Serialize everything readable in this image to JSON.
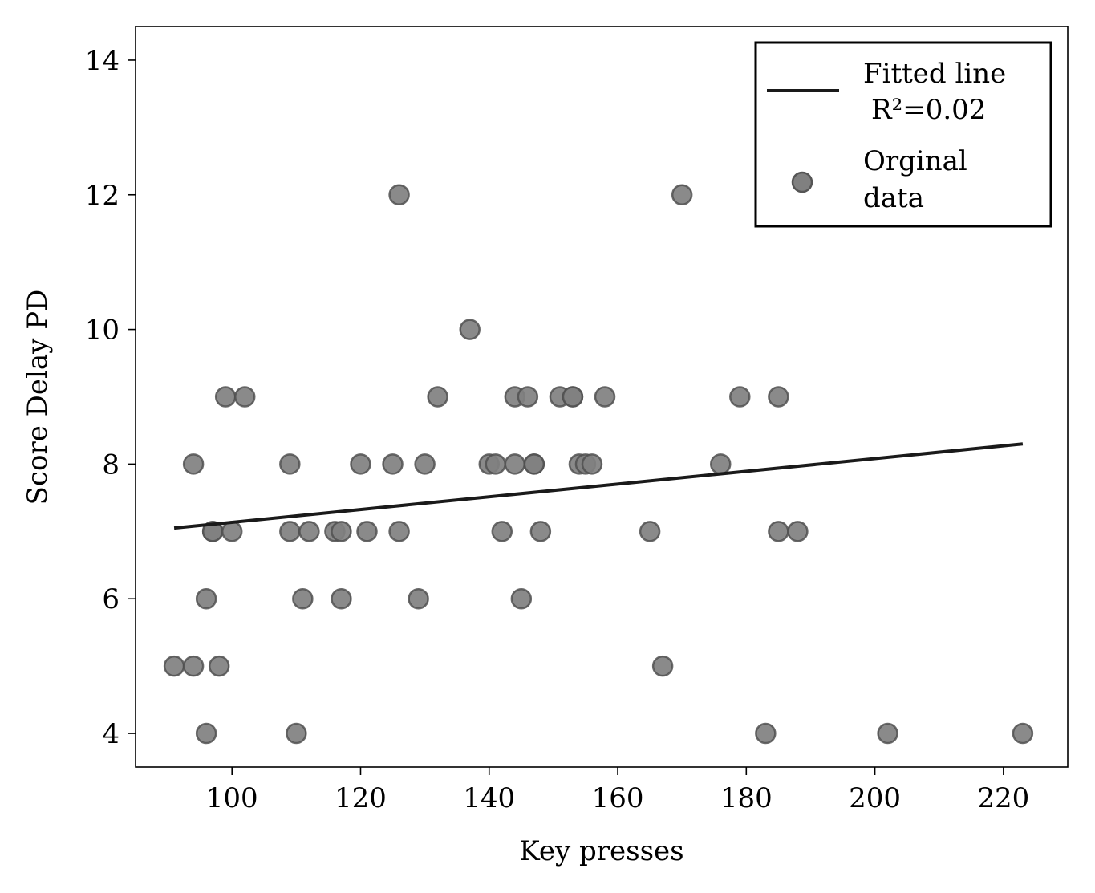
{
  "chart_data": {
    "type": "scatter",
    "xlabel": "Key presses",
    "ylabel": "Score Delay PD",
    "xlim": [
      85,
      230
    ],
    "ylim": [
      3.5,
      14.5
    ],
    "xticks": [
      100,
      120,
      140,
      160,
      180,
      200,
      220
    ],
    "yticks": [
      4,
      6,
      8,
      10,
      12,
      14
    ],
    "grid": false,
    "legend_position": "top-right",
    "legend": {
      "line_label_1": "Fitted line",
      "line_label_2": "R²=0.02",
      "scatter_label_1": "Orginal",
      "scatter_label_2": "data"
    },
    "series": [
      {
        "kind": "line",
        "color": "#1a1a1a",
        "x": [
          91,
          223
        ],
        "y": [
          7.05,
          8.3
        ]
      },
      {
        "kind": "scatter",
        "color": "#808080",
        "points": [
          [
            91,
            5
          ],
          [
            94,
            5
          ],
          [
            98,
            5
          ],
          [
            94,
            8
          ],
          [
            96,
            6
          ],
          [
            96,
            4
          ],
          [
            97,
            7
          ],
          [
            97,
            7
          ],
          [
            100,
            7
          ],
          [
            99,
            9
          ],
          [
            102,
            9
          ],
          [
            109,
            8
          ],
          [
            109,
            7
          ],
          [
            112,
            7
          ],
          [
            111,
            6
          ],
          [
            110,
            4
          ],
          [
            116,
            7
          ],
          [
            117,
            7
          ],
          [
            117,
            6
          ],
          [
            120,
            8
          ],
          [
            121,
            7
          ],
          [
            125,
            8
          ],
          [
            126,
            7
          ],
          [
            126,
            12
          ],
          [
            129,
            6
          ],
          [
            130,
            8
          ],
          [
            132,
            9
          ],
          [
            137,
            10
          ],
          [
            140,
            8
          ],
          [
            141,
            8
          ],
          [
            142,
            7
          ],
          [
            144,
            9
          ],
          [
            144,
            8
          ],
          [
            145,
            6
          ],
          [
            146,
            9
          ],
          [
            147,
            8
          ],
          [
            147,
            8
          ],
          [
            148,
            7
          ],
          [
            151,
            9
          ],
          [
            153,
            9
          ],
          [
            153,
            9
          ],
          [
            154,
            8
          ],
          [
            155,
            8
          ],
          [
            156,
            8
          ],
          [
            158,
            9
          ],
          [
            165,
            7
          ],
          [
            167,
            5
          ],
          [
            170,
            12
          ],
          [
            176,
            8
          ],
          [
            179,
            9
          ],
          [
            183,
            4
          ],
          [
            185,
            9
          ],
          [
            185,
            7
          ],
          [
            188,
            7
          ],
          [
            202,
            4
          ],
          [
            223,
            4
          ]
        ]
      }
    ]
  }
}
